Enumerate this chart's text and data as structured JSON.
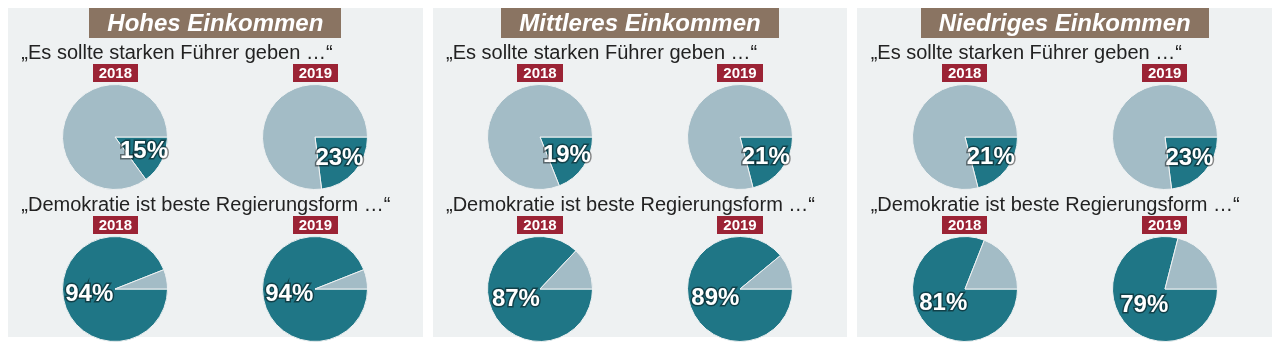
{
  "chart_data": [
    {
      "type": "pie",
      "title": "2018",
      "categories": [
        null,
        null
      ],
      "values": [
        15,
        85
      ],
      "colors": [
        "#1f7686",
        "#a3bcc6"
      ],
      "value_labels": [
        "15%",
        null
      ],
      "annotations": [
        "Hohes Einkommen",
        "„Es sollte starken Führer geben …“"
      ]
    },
    {
      "type": "pie",
      "title": "2019",
      "categories": [
        null,
        null
      ],
      "values": [
        23,
        77
      ],
      "colors": [
        "#1f7686",
        "#a3bcc6"
      ],
      "value_labels": [
        "23%",
        null
      ]
    },
    {
      "type": "pie",
      "title": "2018",
      "categories": [
        null,
        null
      ],
      "values": [
        94,
        6
      ],
      "colors": [
        "#1f7686",
        "#a3bcc6"
      ],
      "value_labels": [
        "94%",
        null
      ],
      "annotations": [
        "„Demokratie ist beste Regierungsform …“"
      ]
    },
    {
      "type": "pie",
      "title": "2019",
      "categories": [
        null,
        null
      ],
      "values": [
        94,
        6
      ],
      "colors": [
        "#1f7686",
        "#a3bcc6"
      ],
      "value_labels": [
        "94%",
        null
      ]
    },
    {
      "type": "pie",
      "title": "2018",
      "categories": [
        null,
        null
      ],
      "values": [
        19,
        81
      ],
      "colors": [
        "#1f7686",
        "#a3bcc6"
      ],
      "value_labels": [
        "19%",
        null
      ],
      "annotations": [
        "Mittleres Einkommen",
        "„Es sollte starken Führer geben …“"
      ]
    },
    {
      "type": "pie",
      "title": "2019",
      "categories": [
        null,
        null
      ],
      "values": [
        21,
        79
      ],
      "colors": [
        "#1f7686",
        "#a3bcc6"
      ],
      "value_labels": [
        "21%",
        null
      ]
    },
    {
      "type": "pie",
      "title": "2018",
      "categories": [
        null,
        null
      ],
      "values": [
        87,
        13
      ],
      "colors": [
        "#1f7686",
        "#a3bcc6"
      ],
      "value_labels": [
        "87%",
        null
      ],
      "annotations": [
        "„Demokratie ist beste Regierungsform …“"
      ]
    },
    {
      "type": "pie",
      "title": "2019",
      "categories": [
        null,
        null
      ],
      "values": [
        89,
        11
      ],
      "colors": [
        "#1f7686",
        "#a3bcc6"
      ],
      "value_labels": [
        "89%",
        null
      ]
    },
    {
      "type": "pie",
      "title": "2018",
      "categories": [
        null,
        null
      ],
      "values": [
        21,
        79
      ],
      "colors": [
        "#1f7686",
        "#a3bcc6"
      ],
      "value_labels": [
        "21%",
        null
      ],
      "annotations": [
        "Niedriges Einkommen",
        "„Es sollte starken Führer geben …“"
      ]
    },
    {
      "type": "pie",
      "title": "2019",
      "categories": [
        null,
        null
      ],
      "values": [
        23,
        77
      ],
      "colors": [
        "#1f7686",
        "#a3bcc6"
      ],
      "value_labels": [
        "23%",
        null
      ]
    },
    {
      "type": "pie",
      "title": "2018",
      "categories": [
        null,
        null
      ],
      "values": [
        81,
        19
      ],
      "colors": [
        "#1f7686",
        "#a3bcc6"
      ],
      "value_labels": [
        "81%",
        null
      ],
      "annotations": [
        "„Demokratie ist beste Regierungsform …“"
      ]
    },
    {
      "type": "pie",
      "title": "2019",
      "categories": [
        null,
        null
      ],
      "values": [
        79,
        21
      ],
      "colors": [
        "#1f7686",
        "#a3bcc6"
      ],
      "value_labels": [
        "79%",
        null
      ]
    }
  ]
}
